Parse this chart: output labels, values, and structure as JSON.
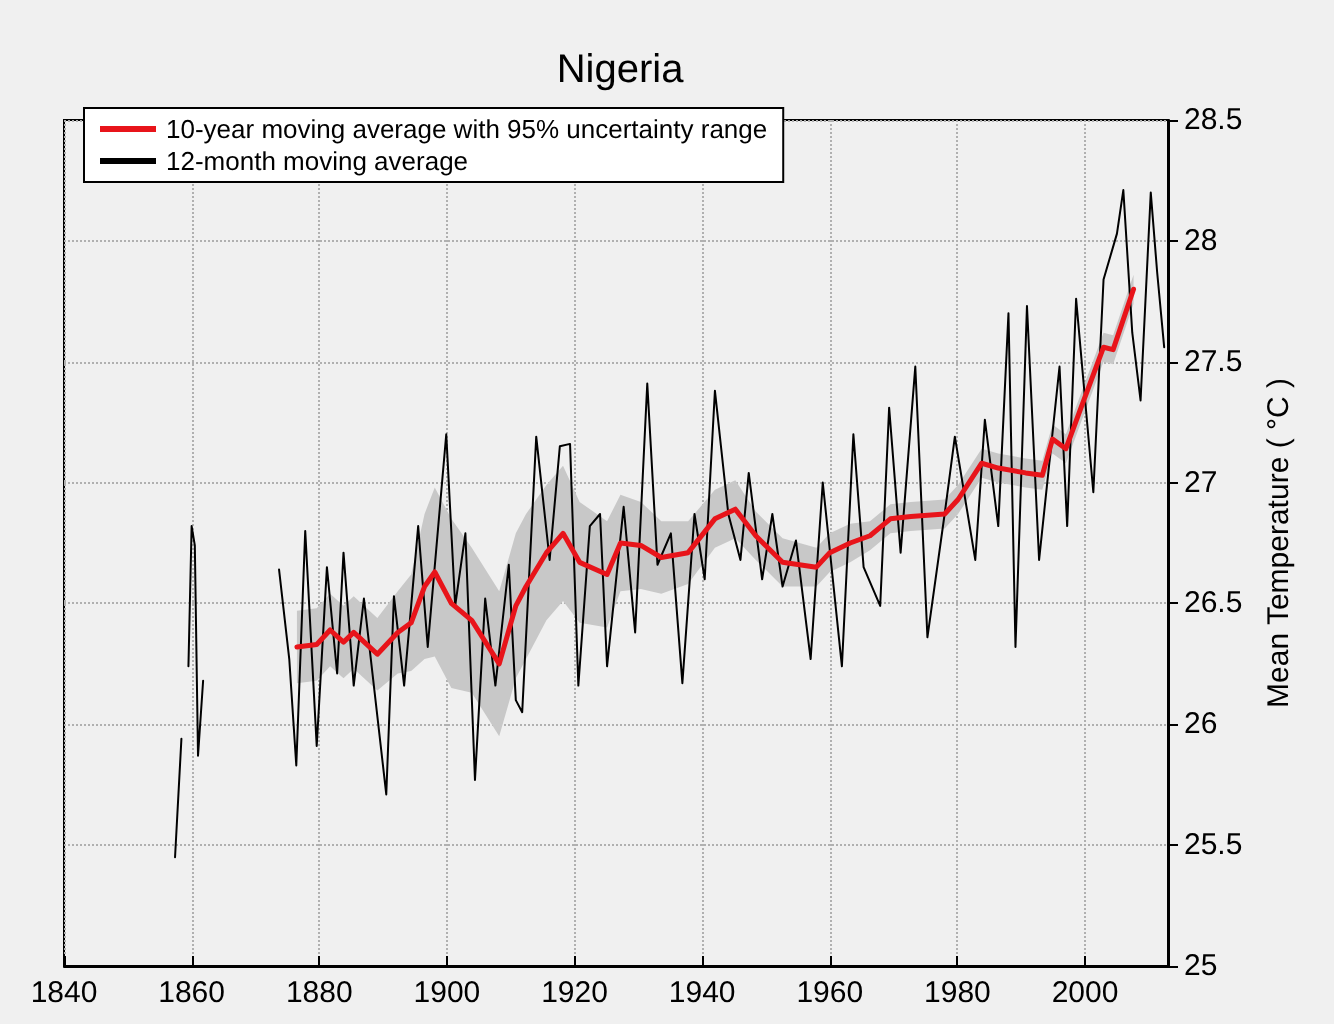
{
  "chart_data": {
    "type": "line",
    "title": "Nigeria",
    "ylabel": "Mean Temperature ( °C )",
    "xlim": [
      1840,
      2013
    ],
    "xticks": [
      1840,
      1860,
      1880,
      1900,
      1920,
      1940,
      1960,
      1980,
      2000
    ],
    "ylim": [
      25,
      28.5
    ],
    "yticks": [
      25,
      25.5,
      26,
      26.5,
      27,
      27.5,
      28,
      28.5
    ],
    "grid": true,
    "legend": "top left",
    "marker": "none",
    "line_style": "solid",
    "series": [
      {
        "name": "10-year moving average with 95% uncertainty range",
        "color": "#e8141a",
        "x": [
          1876.5,
          1879.6,
          1881.7,
          1883.8,
          1885.4,
          1889.1,
          1892.3,
          1894.4,
          1896.5,
          1898.1,
          1900.7,
          1903.9,
          1908.2,
          1910.8,
          1912.4,
          1915.6,
          1918.2,
          1920.8,
          1925.1,
          1927.2,
          1930.4,
          1933.6,
          1937.8,
          1942,
          1945.2,
          1948.4,
          1952.6,
          1957.9,
          1960,
          1963.2,
          1966.3,
          1969.5,
          1972.7,
          1978,
          1980.1,
          1983.8,
          1986.4,
          1990.7,
          1993.3,
          1994.9,
          1997,
          1999.1,
          2002.9,
          2004.4,
          2007.6
        ],
        "values": [
          26.32,
          26.33,
          26.39,
          26.34,
          26.38,
          26.29,
          26.38,
          26.42,
          26.57,
          26.63,
          26.5,
          26.43,
          26.25,
          26.49,
          26.57,
          26.71,
          26.79,
          26.67,
          26.62,
          26.75,
          26.74,
          26.69,
          26.71,
          26.85,
          26.89,
          26.78,
          26.67,
          26.65,
          26.71,
          26.75,
          26.78,
          26.85,
          26.86,
          26.87,
          26.93,
          27.08,
          27.06,
          27.04,
          27.03,
          27.18,
          27.14,
          27.29,
          27.56,
          27.55,
          27.8
        ],
        "lower": [
          26.17,
          26.18,
          26.24,
          26.19,
          26.23,
          26.14,
          26.21,
          26.22,
          26.27,
          26.28,
          26.15,
          26.13,
          25.95,
          26.19,
          26.27,
          26.43,
          26.51,
          26.42,
          26.4,
          26.55,
          26.56,
          26.54,
          26.58,
          26.73,
          26.77,
          26.68,
          26.57,
          26.57,
          26.63,
          26.67,
          26.72,
          26.79,
          26.8,
          26.81,
          26.87,
          27.02,
          27,
          26.98,
          26.97,
          27.12,
          27.08,
          27.23,
          27.5,
          27.49,
          27.74
        ],
        "upper": [
          26.47,
          26.48,
          26.54,
          26.49,
          26.53,
          26.44,
          26.55,
          26.62,
          26.87,
          26.98,
          26.85,
          26.73,
          26.55,
          26.79,
          26.87,
          26.99,
          27.07,
          26.92,
          26.84,
          26.95,
          26.92,
          26.84,
          26.84,
          26.97,
          27.01,
          26.88,
          26.77,
          26.73,
          26.79,
          26.83,
          26.84,
          26.91,
          26.92,
          26.93,
          26.99,
          27.14,
          27.12,
          27.1,
          27.09,
          27.24,
          27.2,
          27.35,
          27.62,
          27.61,
          27.86
        ]
      },
      {
        "name": "12-month moving average",
        "color": "#000000",
        "x": [
          1857.4,
          1858.4,
          1859,
          1859.5,
          1860,
          1860.5,
          1861,
          1861.8,
          1867,
          1873.7,
          1875.3,
          1876.4,
          1877.8,
          1879.6,
          1881.2,
          1882.8,
          1883.8,
          1885.4,
          1887,
          1890.5,
          1891.7,
          1893.3,
          1895.5,
          1897,
          1899.9,
          1901.3,
          1902.9,
          1904.4,
          1906,
          1907.6,
          1909.7,
          1910.8,
          1911.8,
          1914,
          1916.1,
          1917.7,
          1919.3,
          1920.6,
          1922.4,
          1924,
          1925.1,
          1927.7,
          1929.5,
          1931.4,
          1933,
          1935.1,
          1936.9,
          1938.8,
          1940.4,
          1942,
          1944.1,
          1946,
          1947.3,
          1949.4,
          1951,
          1952.6,
          1954.7,
          1957,
          1958.9,
          1961.9,
          1963.7,
          1965.3,
          1967.9,
          1969.3,
          1971.1,
          1973.4,
          1975.3,
          1978,
          1979.6,
          1982.8,
          1984.3,
          1986.4,
          1988,
          1989.1,
          1990.9,
          1992.8,
          1996,
          1997.2,
          1998.6,
          2001.3,
          2002.9,
          2005,
          2006,
          2007.4,
          2008.7,
          2010.3,
          2011.3,
          2012.4
        ],
        "values": [
          25.45,
          25.94,
          null,
          26.24,
          26.82,
          26.74,
          25.87,
          26.18,
          null,
          26.64,
          26.27,
          25.83,
          26.8,
          25.91,
          26.65,
          26.21,
          26.71,
          26.16,
          26.52,
          25.71,
          26.53,
          26.16,
          26.82,
          26.32,
          27.2,
          26.49,
          26.79,
          25.77,
          26.52,
          26.16,
          26.66,
          26.1,
          26.05,
          27.19,
          26.68,
          27.15,
          27.16,
          26.16,
          26.82,
          26.87,
          26.24,
          26.9,
          26.38,
          27.41,
          26.66,
          26.79,
          26.17,
          26.87,
          26.6,
          27.38,
          26.87,
          26.68,
          27.04,
          26.6,
          26.87,
          26.57,
          26.76,
          26.27,
          27,
          26.24,
          27.2,
          26.65,
          26.49,
          27.31,
          26.71,
          27.48,
          26.36,
          26.87,
          27.19,
          26.68,
          27.26,
          26.82,
          27.7,
          26.32,
          27.73,
          26.68,
          27.48,
          26.82,
          27.76,
          26.96,
          27.84,
          28.03,
          28.21,
          27.62,
          27.34,
          28.2,
          27.87,
          27.56
        ]
      }
    ]
  }
}
